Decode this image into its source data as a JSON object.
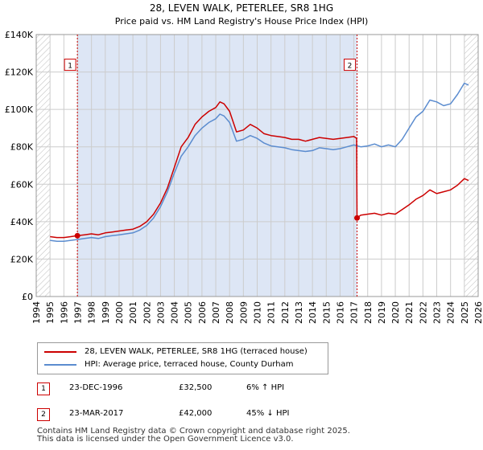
{
  "chart_data": {
    "type": "line",
    "title": "28, LEVEN WALK, PETERLEE, SR8 1HG",
    "subtitle": "Price paid vs. HM Land Registry's House Price Index (HPI)",
    "xlim": [
      1994.0,
      2026.0
    ],
    "ylim": [
      0,
      140000
    ],
    "x_ticks": [
      "1994",
      "1995",
      "1996",
      "1997",
      "1998",
      "1999",
      "2000",
      "2001",
      "2002",
      "2003",
      "2004",
      "2005",
      "2006",
      "2007",
      "2008",
      "2009",
      "2010",
      "2011",
      "2012",
      "2013",
      "2014",
      "2015",
      "2016",
      "2017",
      "2018",
      "2019",
      "2020",
      "2021",
      "2022",
      "2023",
      "2024",
      "2025",
      "2026"
    ],
    "y_ticks": [
      {
        "value": 0,
        "label": "£0"
      },
      {
        "value": 20000,
        "label": "£20K"
      },
      {
        "value": 40000,
        "label": "£40K"
      },
      {
        "value": 60000,
        "label": "£60K"
      },
      {
        "value": 80000,
        "label": "£80K"
      },
      {
        "value": 100000,
        "label": "£100K"
      },
      {
        "value": 120000,
        "label": "£120K"
      },
      {
        "value": 140000,
        "label": "£140K"
      }
    ],
    "grid": true,
    "hatched_regions": [
      [
        1994.0,
        1995.0
      ],
      [
        2025.0,
        2026.0
      ]
    ],
    "shaded_region": [
      1996.98,
      2017.23
    ],
    "series": [
      {
        "name": "28, LEVEN WALK, PETERLEE, SR8 1HG (terraced house)",
        "color": "#cc0000",
        "x": [
          1995.0,
          1995.5,
          1996.0,
          1996.5,
          1996.98,
          1997.5,
          1998.0,
          1998.5,
          1999.0,
          1999.5,
          2000.0,
          2000.5,
          2001.0,
          2001.5,
          2002.0,
          2002.5,
          2003.0,
          2003.5,
          2004.0,
          2004.5,
          2005.0,
          2005.5,
          2006.0,
          2006.5,
          2007.0,
          2007.3,
          2007.6,
          2008.0,
          2008.5,
          2009.0,
          2009.5,
          2010.0,
          2010.5,
          2011.0,
          2011.5,
          2012.0,
          2012.5,
          2013.0,
          2013.5,
          2014.0,
          2014.5,
          2015.0,
          2015.5,
          2016.0,
          2016.5,
          2017.0,
          2017.2,
          2017.23,
          2017.5,
          2018.0,
          2018.5,
          2019.0,
          2019.5,
          2020.0,
          2020.5,
          2021.0,
          2021.5,
          2022.0,
          2022.5,
          2023.0,
          2023.5,
          2024.0,
          2024.5,
          2025.0,
          2025.3
        ],
        "y": [
          32000,
          31500,
          31500,
          32000,
          32500,
          33000,
          33500,
          33000,
          34000,
          34500,
          35000,
          35500,
          36000,
          37500,
          40000,
          44000,
          50000,
          58000,
          69000,
          80000,
          85000,
          92000,
          96000,
          99000,
          101000,
          104000,
          103000,
          99000,
          88000,
          89000,
          92000,
          90000,
          87000,
          86000,
          85500,
          85000,
          84000,
          84000,
          83000,
          84000,
          85000,
          84500,
          84000,
          84500,
          85000,
          85500,
          84500,
          42000,
          43500,
          44000,
          44500,
          43500,
          44500,
          44000,
          46500,
          49000,
          52000,
          54000,
          57000,
          55000,
          56000,
          57000,
          59500,
          63000,
          62000
        ]
      },
      {
        "name": "HPI: Average price, terraced house, County Durham",
        "color": "#5b8ccf",
        "x": [
          1995.0,
          1995.5,
          1996.0,
          1996.5,
          1997.0,
          1997.5,
          1998.0,
          1998.5,
          1999.0,
          1999.5,
          2000.0,
          2000.5,
          2001.0,
          2001.5,
          2002.0,
          2002.5,
          2003.0,
          2003.5,
          2004.0,
          2004.5,
          2005.0,
          2005.5,
          2006.0,
          2006.5,
          2007.0,
          2007.3,
          2007.6,
          2008.0,
          2008.5,
          2009.0,
          2009.5,
          2010.0,
          2010.5,
          2011.0,
          2011.5,
          2012.0,
          2012.5,
          2013.0,
          2013.5,
          2014.0,
          2014.5,
          2015.0,
          2015.5,
          2016.0,
          2016.5,
          2017.0,
          2017.5,
          2018.0,
          2018.5,
          2019.0,
          2019.5,
          2020.0,
          2020.5,
          2021.0,
          2021.5,
          2022.0,
          2022.5,
          2023.0,
          2023.5,
          2024.0,
          2024.5,
          2025.0,
          2025.3
        ],
        "y": [
          30000,
          29500,
          29500,
          30000,
          30500,
          31000,
          31500,
          31000,
          32000,
          32500,
          33000,
          33500,
          34000,
          35500,
          38000,
          42000,
          48000,
          56000,
          66000,
          75000,
          80000,
          86000,
          90000,
          93000,
          95000,
          97500,
          96500,
          93000,
          83000,
          84000,
          86000,
          84500,
          82000,
          80500,
          80000,
          79500,
          78500,
          78000,
          77500,
          78000,
          79500,
          79000,
          78500,
          79000,
          80000,
          81000,
          80000,
          80500,
          81500,
          80000,
          81000,
          80000,
          84000,
          90000,
          96000,
          99000,
          105000,
          104000,
          102000,
          103000,
          108000,
          114000,
          113000
        ]
      }
    ],
    "markers": [
      {
        "label": "1",
        "x": 1996.98,
        "y": 32500
      },
      {
        "label": "2",
        "x": 2017.23,
        "y": 42000
      }
    ]
  },
  "legend": {
    "entry1": "28, LEVEN WALK, PETERLEE, SR8 1HG (terraced house)",
    "entry2": "HPI: Average price, terraced house, County Durham"
  },
  "sales": [
    {
      "num": "1",
      "date": "23-DEC-1996",
      "price": "£32,500",
      "hpi": "6% ↑ HPI"
    },
    {
      "num": "2",
      "date": "23-MAR-2017",
      "price": "£42,000",
      "hpi": "45% ↓ HPI"
    }
  ],
  "footer": {
    "line1": "Contains HM Land Registry data © Crown copyright and database right 2025.",
    "line2": "This data is licensed under the Open Government Licence v3.0."
  },
  "colors": {
    "price": "#cc0000",
    "hpi": "#5b8ccf",
    "shade": "#dde6f5",
    "grid": "#cccccc"
  }
}
